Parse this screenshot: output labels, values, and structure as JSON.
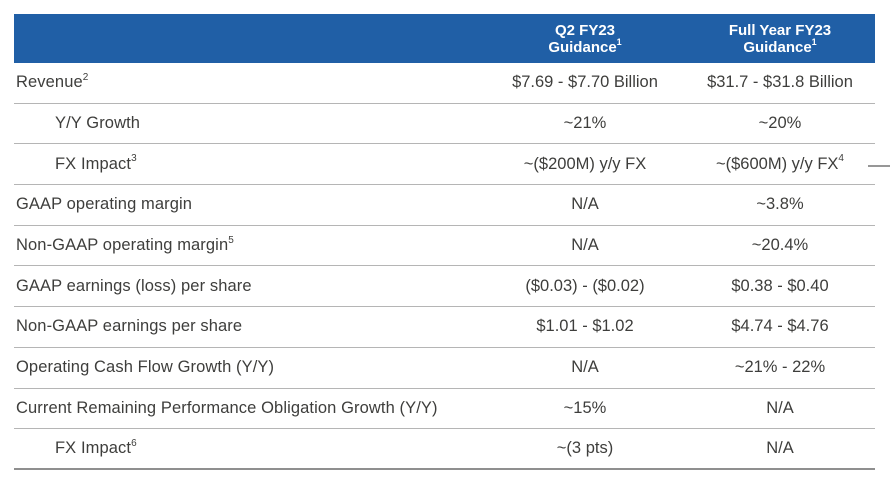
{
  "colors": {
    "header-bg": "#205FA6",
    "header-text": "#ffffff",
    "body-text": "#3e3e3c",
    "row-border": "#b5b5b5",
    "bottom-border": "#8f8f8f"
  },
  "header": {
    "q2": {
      "line1": "Q2 FY23",
      "line2": "Guidance",
      "sup": "1"
    },
    "fy": {
      "line1": "Full Year FY23",
      "line2": "Guidance",
      "sup": "1"
    }
  },
  "rows": [
    {
      "label": "Revenue",
      "label_sup": "2",
      "q2": "$7.69 - $7.70 Billion",
      "fy": "$31.7 - $31.8 Billion"
    },
    {
      "label": "Y/Y Growth",
      "q2": "~21%",
      "fy": "~20%"
    },
    {
      "label": "FX Impact",
      "label_sup": "3",
      "q2": "~($200M) y/y FX",
      "fy": "~($600M) y/y FX",
      "fy_sup": "4"
    },
    {
      "label": "GAAP operating margin",
      "q2": "N/A",
      "fy": "~3.8%"
    },
    {
      "label": "Non-GAAP operating margin",
      "label_sup": "5",
      "q2": "N/A",
      "fy": "~20.4%"
    },
    {
      "label": "GAAP earnings (loss) per share",
      "q2": "($0.03) - ($0.02)",
      "fy": "$0.38 - $0.40"
    },
    {
      "label": "Non-GAAP earnings per share",
      "q2": "$1.01 - $1.02",
      "fy": "$4.74 - $4.76"
    },
    {
      "label": "Operating Cash Flow Growth (Y/Y)",
      "q2": "N/A",
      "fy": "~21% - 22%"
    },
    {
      "label": "Current Remaining Performance Obligation Growth (Y/Y)",
      "q2": "~15%",
      "fy": "N/A"
    },
    {
      "label": "FX Impact",
      "label_sup": "6",
      "q2": "~(3 pts)",
      "fy": "N/A"
    }
  ]
}
